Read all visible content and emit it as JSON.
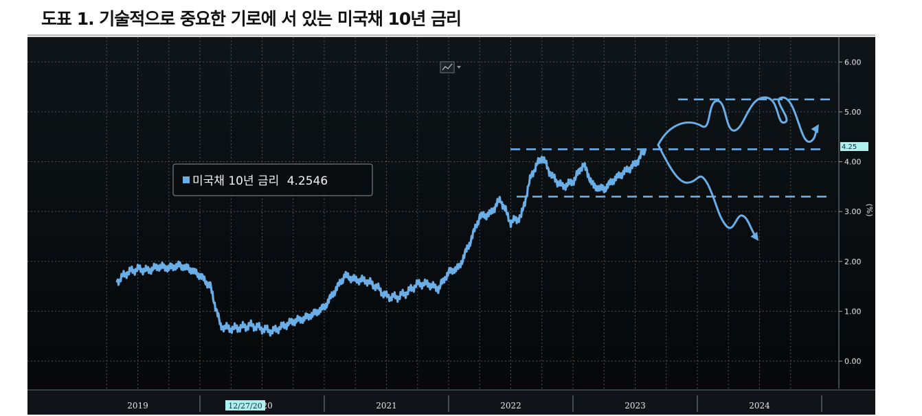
{
  "title": "도표 1. 기술적으로 중요한 기로에 서 있는 미국채 10년 금리",
  "colors": {
    "background": "#0b0f12",
    "series": "#6aaee8",
    "grid": "#4a5560",
    "current_marker": "#aef0ee"
  },
  "chart_data": {
    "type": "line",
    "title": "도표 1. 기술적으로 중요한 기로에 서 있는 미국채 10년 금리",
    "ylabel": "(%)",
    "xlabel": "",
    "ylim": [
      -0.55,
      6.5
    ],
    "yticks": [
      "0.00",
      "1.00",
      "2.00",
      "3.00",
      "4.00",
      "5.00",
      "6.00"
    ],
    "x_axis_labels": [
      "2019",
      "2020",
      "2021",
      "2022",
      "2023",
      "2024"
    ],
    "date_badge": "12/27/20",
    "current_value_label": "4.25",
    "legend": {
      "label": "미국채 10년 금리",
      "value": "4.2546"
    },
    "grid": true,
    "series": [
      {
        "name": "미국채 10년 금리",
        "x": [
          "2019-05",
          "2019-06",
          "2019-07",
          "2019-08",
          "2019-09",
          "2019-10",
          "2019-11",
          "2019-12",
          "2020-01",
          "2020-02",
          "2020-03",
          "2020-04",
          "2020-05",
          "2020-06",
          "2020-07",
          "2020-08",
          "2020-09",
          "2020-10",
          "2020-11",
          "2020-12",
          "2021-01",
          "2021-02",
          "2021-03",
          "2021-04",
          "2021-05",
          "2021-06",
          "2021-07",
          "2021-08",
          "2021-09",
          "2021-10",
          "2021-11",
          "2021-12",
          "2022-01",
          "2022-02",
          "2022-03",
          "2022-04",
          "2022-05",
          "2022-06",
          "2022-07",
          "2022-08",
          "2022-09",
          "2022-10",
          "2022-11",
          "2022-12",
          "2023-01",
          "2023-02",
          "2023-03",
          "2023-04",
          "2023-05",
          "2023-06",
          "2023-07",
          "2023-08"
        ],
        "y": [
          1.6,
          1.78,
          1.85,
          1.82,
          1.9,
          1.87,
          1.92,
          1.85,
          1.72,
          1.5,
          0.7,
          0.65,
          0.68,
          0.72,
          0.65,
          0.6,
          0.7,
          0.8,
          0.85,
          0.95,
          1.08,
          1.4,
          1.72,
          1.63,
          1.62,
          1.5,
          1.3,
          1.28,
          1.38,
          1.55,
          1.55,
          1.45,
          1.78,
          1.88,
          2.35,
          2.9,
          2.95,
          3.25,
          2.78,
          2.9,
          3.75,
          4.1,
          3.7,
          3.5,
          3.6,
          3.95,
          3.5,
          3.45,
          3.65,
          3.8,
          3.95,
          4.25
        ]
      }
    ],
    "scenario_levels": [
      5.25,
      4.25,
      3.3
    ]
  }
}
